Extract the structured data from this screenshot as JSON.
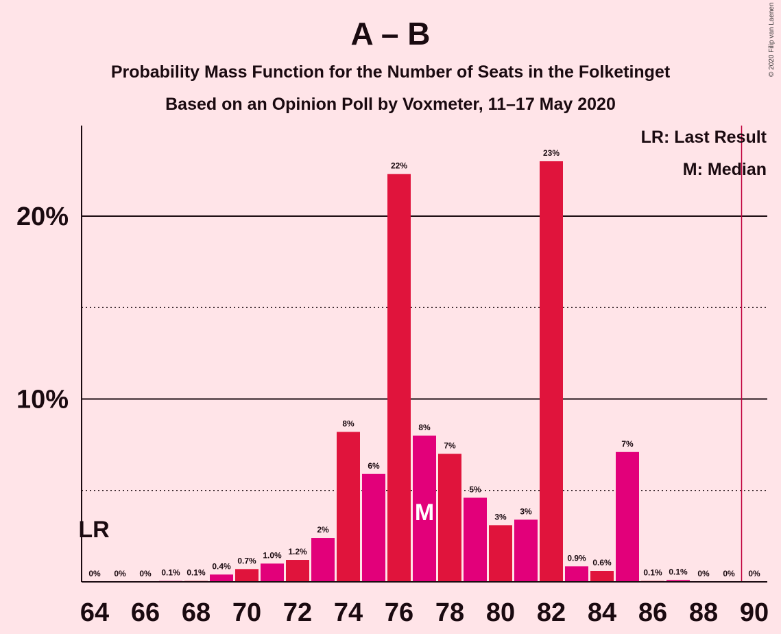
{
  "title": "A – B",
  "subtitle": "Probability Mass Function for the Number of Seats in the Folketinget",
  "subtitle2": "Based on an Opinion Poll by Voxmeter, 11–17 May 2020",
  "copyright": "© 2020 Filip van Laenen",
  "legend": {
    "last_result": "LR: Last Result",
    "median": "M: Median"
  },
  "markers": {
    "last_result_label": "LR",
    "median_label": "M"
  },
  "colors": {
    "background": "#ffe4e8",
    "bar_red": "#e0143c",
    "bar_pink": "#e2007a",
    "last_result_line": "#c0003c"
  },
  "chart_data": {
    "type": "bar",
    "x": [
      64,
      65,
      66,
      67,
      68,
      69,
      70,
      71,
      72,
      73,
      74,
      75,
      76,
      77,
      78,
      79,
      80,
      81,
      82,
      83,
      84,
      85,
      86,
      87,
      88,
      89,
      90
    ],
    "values": [
      0,
      0,
      0,
      0.05,
      0.05,
      0.4,
      0.7,
      1.0,
      1.2,
      2.4,
      8.2,
      5.9,
      22.3,
      8.0,
      7.0,
      4.6,
      3.1,
      3.4,
      23.0,
      0.85,
      0.6,
      7.1,
      0.05,
      0.1,
      0,
      0,
      0
    ],
    "data_labels": [
      "0%",
      "0%",
      "0%",
      "0.1%",
      "0.1%",
      "0.4%",
      "0.7%",
      "1.0%",
      "1.2%",
      "2%",
      "8%",
      "6%",
      "22%",
      "8%",
      "7%",
      "5%",
      "3%",
      "3%",
      "23%",
      "0.9%",
      "0.6%",
      "7%",
      "0.1%",
      "0.1%",
      "0%",
      "0%",
      "0%"
    ],
    "xticks": [
      64,
      66,
      68,
      70,
      72,
      74,
      76,
      78,
      80,
      82,
      84,
      86,
      88,
      90
    ],
    "yticks": [
      {
        "value": 10,
        "label": "10%"
      },
      {
        "value": 20,
        "label": "20%"
      }
    ],
    "minor_gridlines": [
      5,
      15
    ],
    "ylim": [
      0,
      25
    ],
    "last_result": 64,
    "median": 77,
    "majority_line": 89.5
  }
}
